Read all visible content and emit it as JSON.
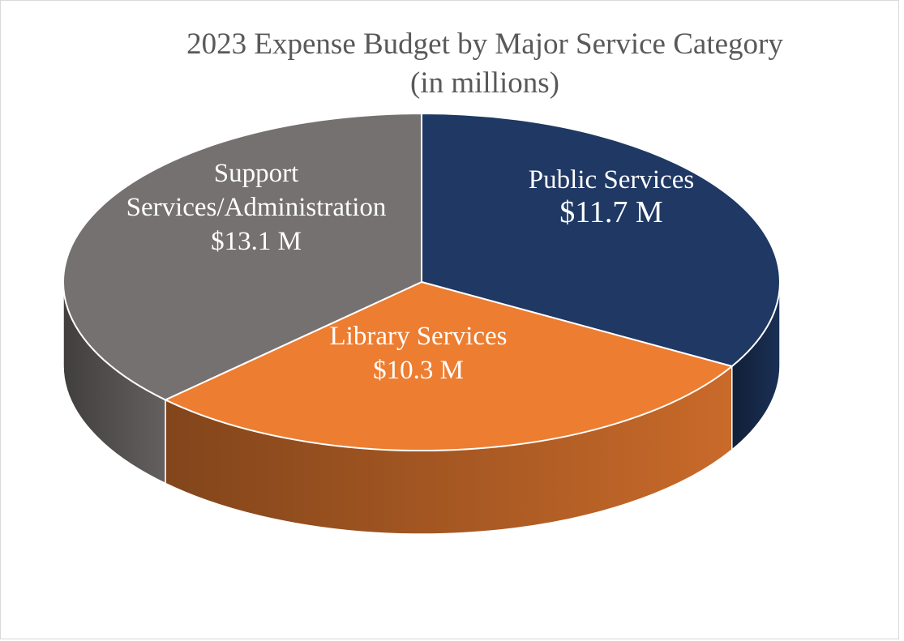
{
  "chart_data": {
    "type": "pie",
    "style": "3d",
    "title": "2023 Expense Budget by Major Service Category",
    "subtitle": "(in millions)",
    "slices": [
      {
        "name": "Public Services",
        "value": 11.7,
        "label_lines": [
          "Public Services",
          "$11.7 M"
        ],
        "color": "#1f3864"
      },
      {
        "name": "Library Services",
        "value": 10.3,
        "label_lines": [
          "Library Services",
          "$10.3 M"
        ],
        "color": "#ed7d31"
      },
      {
        "name": "Support Services/Administration",
        "value": 13.1,
        "label_lines": [
          "Support",
          "Services/Administration",
          "$13.1 M"
        ],
        "color": "#767171"
      }
    ],
    "legend": false
  }
}
